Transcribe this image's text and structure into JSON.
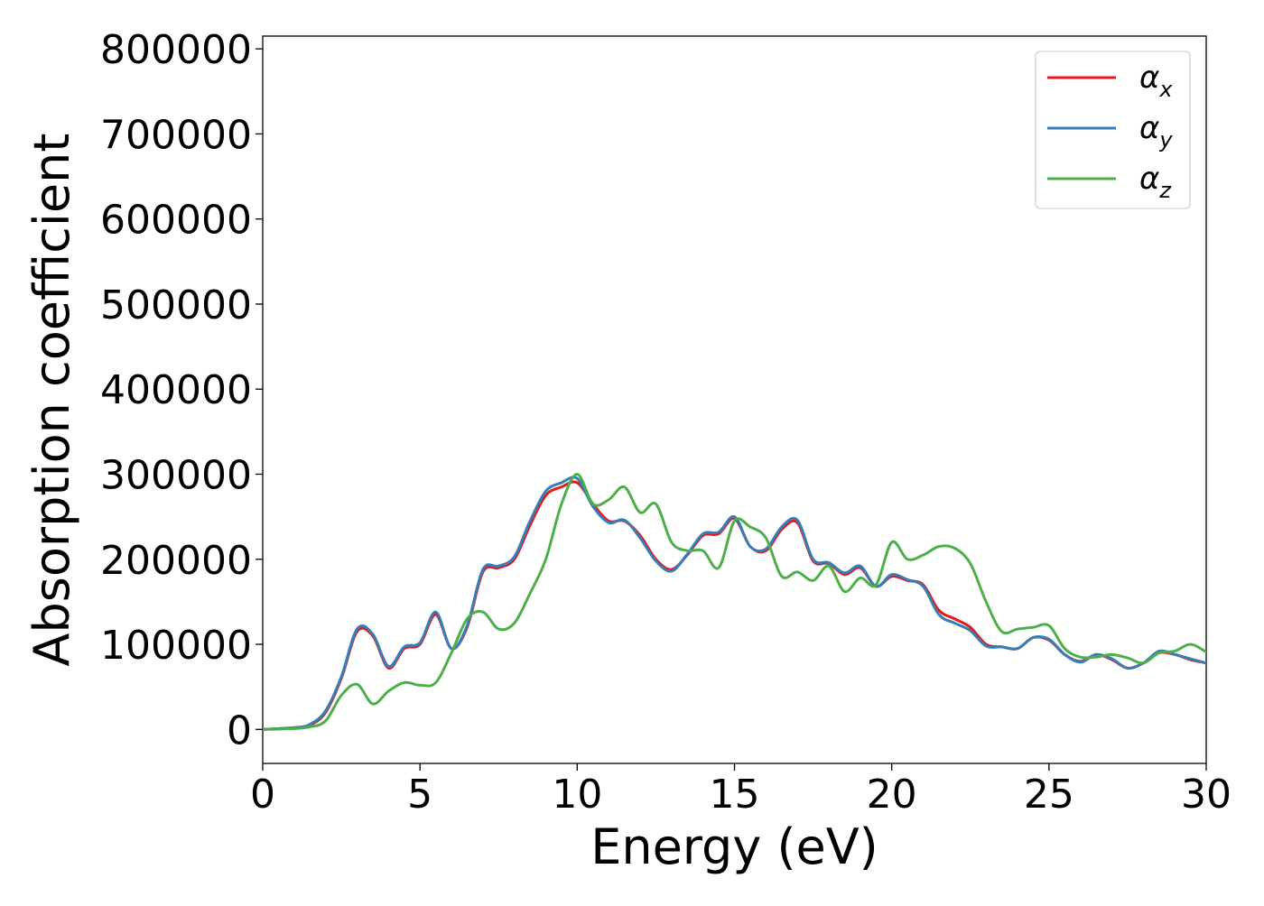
{
  "chart_data": {
    "type": "line",
    "title": "",
    "xlabel": "Energy (eV)",
    "ylabel": "Absorption coefficient",
    "xlim": [
      0,
      30
    ],
    "ylim": [
      -40000,
      815000
    ],
    "xticks": [
      0,
      5,
      10,
      15,
      20,
      25,
      30
    ],
    "xtick_labels": [
      "0",
      "5",
      "10",
      "15",
      "20",
      "25",
      "30"
    ],
    "yticks": [
      0,
      100000,
      200000,
      300000,
      400000,
      500000,
      600000,
      700000,
      800000
    ],
    "ytick_labels": [
      "0",
      "100000",
      "200000",
      "300000",
      "400000",
      "500000",
      "600000",
      "700000",
      "800000"
    ],
    "grid": false,
    "legend_position": "top-right",
    "series": [
      {
        "name": "α_x",
        "label_main": "α",
        "label_sub": "x",
        "color": "#e41a1c",
        "x": [
          0,
          1,
          1.5,
          2,
          2.5,
          3,
          3.5,
          4,
          4.5,
          5,
          5.5,
          6,
          6.5,
          7,
          7.5,
          8,
          8.5,
          9,
          9.5,
          10,
          10.5,
          11,
          11.5,
          12,
          12.5,
          13,
          13.5,
          14,
          14.5,
          15,
          15.5,
          16,
          16.5,
          17,
          17.5,
          18,
          18.5,
          19,
          19.5,
          20,
          20.5,
          21,
          21.5,
          22,
          22.5,
          23,
          23.5,
          24,
          24.5,
          25,
          25.5,
          26,
          26.5,
          27,
          27.5,
          28,
          28.5,
          29,
          29.5,
          30
        ],
        "y": [
          0,
          2000,
          5000,
          20000,
          60000,
          115000,
          110000,
          72000,
          95000,
          100000,
          135000,
          95000,
          120000,
          185000,
          190000,
          200000,
          240000,
          275000,
          285000,
          290000,
          265000,
          245000,
          245000,
          228000,
          200000,
          188000,
          205000,
          228000,
          230000,
          248000,
          215000,
          210000,
          235000,
          243000,
          198000,
          195000,
          182000,
          190000,
          168000,
          180000,
          175000,
          170000,
          140000,
          130000,
          120000,
          100000,
          97000,
          95000,
          108000,
          105000,
          88000,
          80000,
          88000,
          82000,
          72000,
          78000,
          90000,
          88000,
          82000,
          78000
        ]
      },
      {
        "name": "α_y",
        "label_main": "α",
        "label_sub": "y",
        "color": "#377eb8",
        "x": [
          0,
          1,
          1.5,
          2,
          2.5,
          3,
          3.5,
          4,
          4.5,
          5,
          5.5,
          6,
          6.5,
          7,
          7.5,
          8,
          8.5,
          9,
          9.5,
          10,
          10.5,
          11,
          11.5,
          12,
          12.5,
          13,
          13.5,
          14,
          14.5,
          15,
          15.5,
          16,
          16.5,
          17,
          17.5,
          18,
          18.5,
          19,
          19.5,
          20,
          20.5,
          21,
          21.5,
          22,
          22.5,
          23,
          23.5,
          24,
          24.5,
          25,
          25.5,
          26,
          26.5,
          27,
          27.5,
          28,
          28.5,
          29,
          29.5,
          30
        ],
        "y": [
          0,
          2000,
          6000,
          22000,
          62000,
          118000,
          112000,
          74000,
          97000,
          102000,
          138000,
          95000,
          122000,
          188000,
          192000,
          203000,
          245000,
          280000,
          290000,
          295000,
          262000,
          243000,
          246000,
          225000,
          198000,
          186000,
          206000,
          230000,
          232000,
          250000,
          215000,
          212000,
          238000,
          246000,
          200000,
          196000,
          184000,
          192000,
          168000,
          182000,
          176000,
          168000,
          135000,
          125000,
          116000,
          98000,
          97000,
          95000,
          108000,
          106000,
          88000,
          79000,
          88000,
          83000,
          72000,
          78000,
          92000,
          88000,
          83000,
          78000
        ]
      },
      {
        "name": "α_z",
        "label_main": "α",
        "label_sub": "z",
        "color": "#4daf4a",
        "x": [
          0,
          1,
          1.5,
          2,
          2.5,
          3,
          3.5,
          4,
          4.5,
          5,
          5.5,
          6,
          6.5,
          7,
          7.5,
          8,
          8.5,
          9,
          9.5,
          10,
          10.5,
          11,
          11.5,
          12,
          12.5,
          13,
          13.5,
          14,
          14.5,
          15,
          15.5,
          16,
          16.5,
          17,
          17.5,
          18,
          18.5,
          19,
          19.5,
          20,
          20.5,
          21,
          21.5,
          22,
          22.5,
          23,
          23.5,
          24,
          24.5,
          25,
          25.5,
          26,
          26.5,
          27,
          27.5,
          28,
          28.5,
          29,
          29.5,
          30
        ],
        "y": [
          0,
          1000,
          3000,
          10000,
          40000,
          53000,
          30000,
          45000,
          55000,
          52000,
          55000,
          90000,
          130000,
          138000,
          118000,
          125000,
          160000,
          200000,
          265000,
          300000,
          265000,
          270000,
          285000,
          255000,
          265000,
          220000,
          210000,
          210000,
          190000,
          245000,
          238000,
          225000,
          180000,
          185000,
          175000,
          192000,
          162000,
          178000,
          170000,
          220000,
          200000,
          205000,
          215000,
          213000,
          195000,
          150000,
          115000,
          118000,
          120000,
          122000,
          95000,
          85000,
          85000,
          88000,
          84000,
          78000,
          90000,
          92000,
          100000,
          91000
        ]
      }
    ]
  }
}
